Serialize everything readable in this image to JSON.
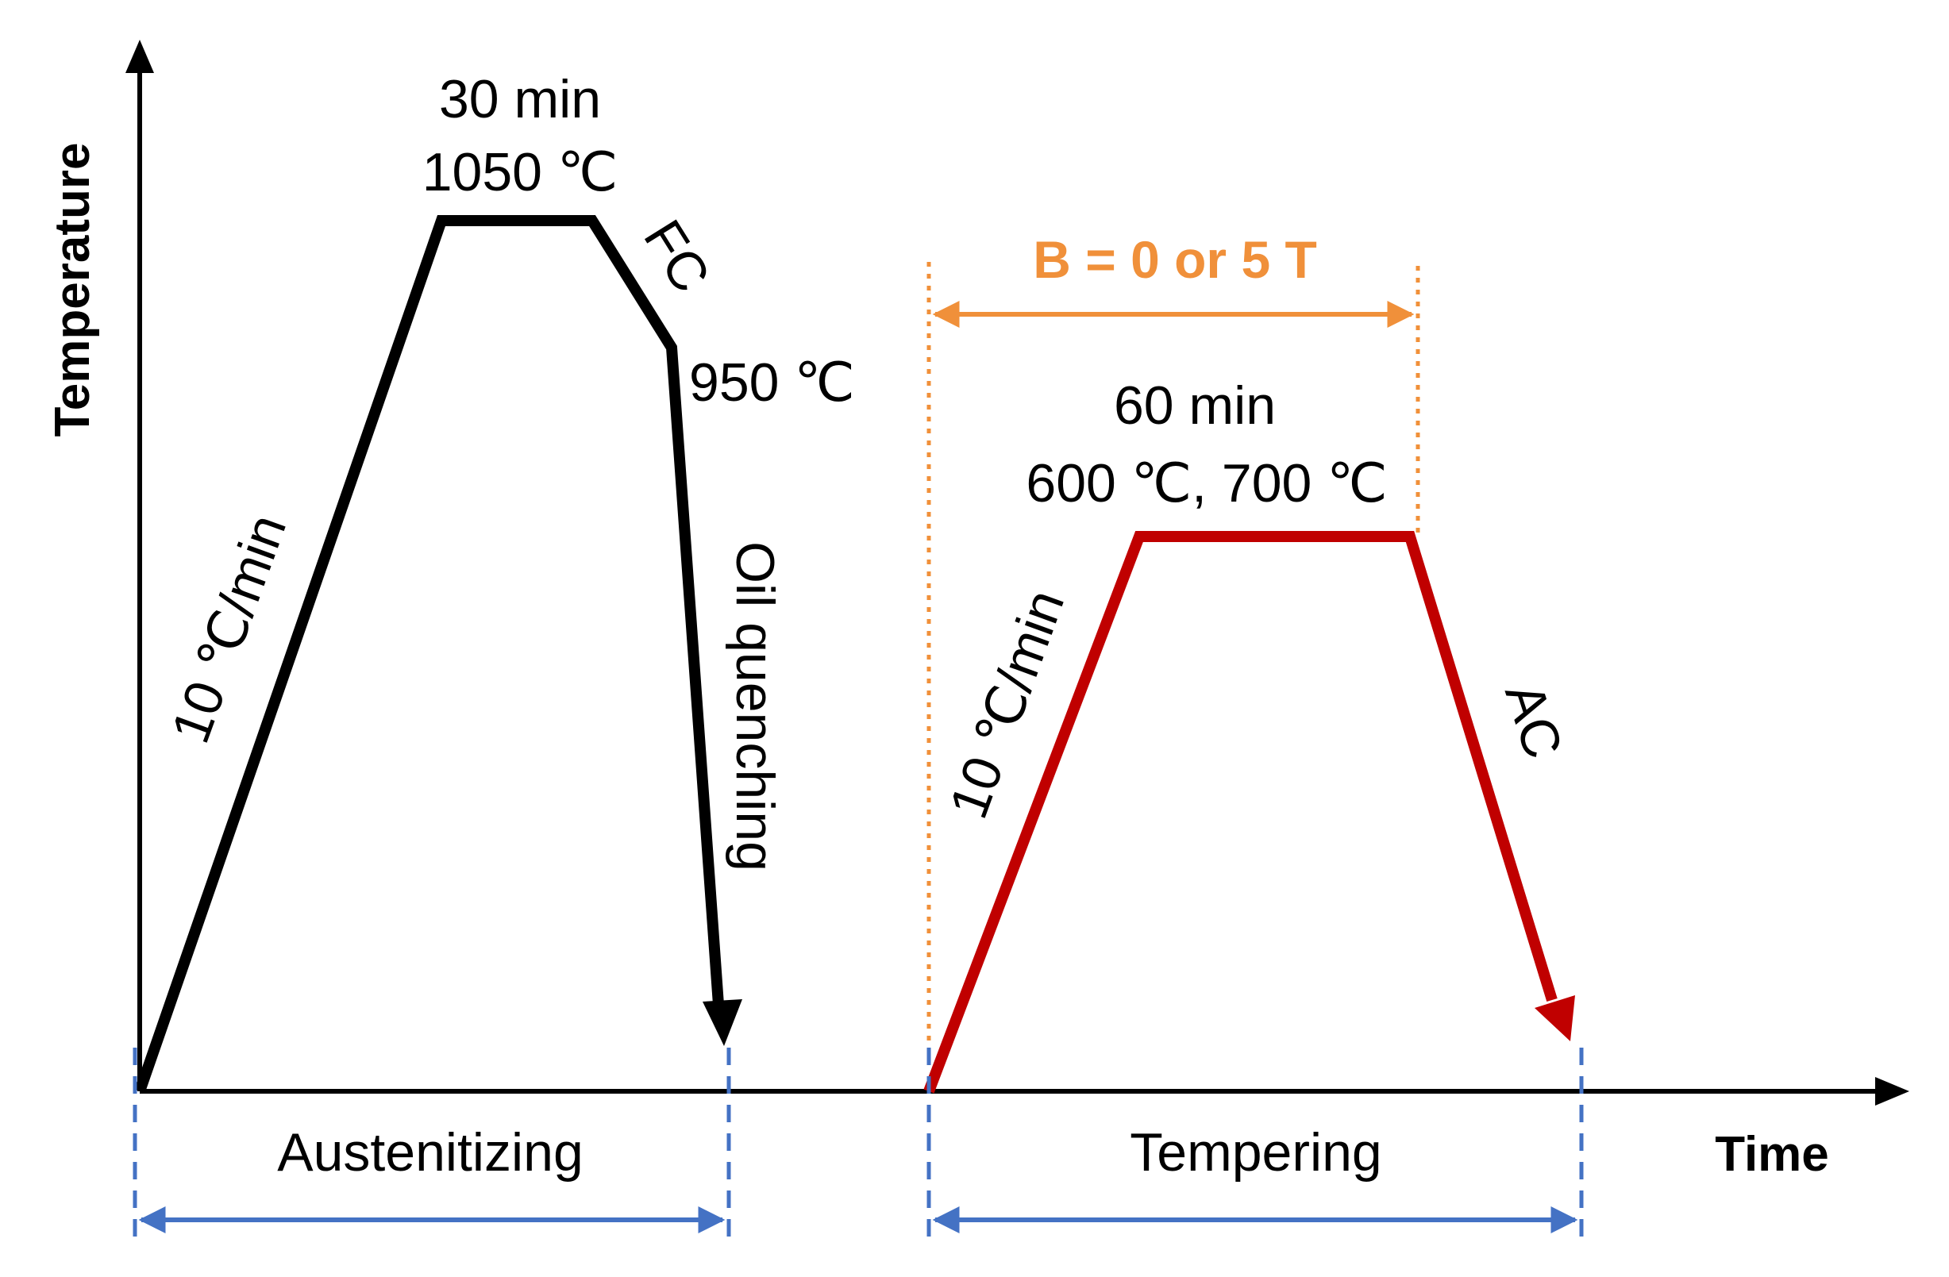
{
  "axes": {
    "y_label": "Temperature",
    "x_label": "Time"
  },
  "austenitizing": {
    "heating_rate": "10 ℃/min",
    "hold_time": "30 min",
    "hold_temp": "1050 ℃",
    "furnace_cool": "FC",
    "quench_start_temp": "950 ℃",
    "quench": "Oil quenching",
    "stage_label": "Austenitizing",
    "color": "#000000"
  },
  "tempering": {
    "field": "B = 0 or 5 T",
    "heating_rate": "10 ℃/min",
    "hold_time": "60 min",
    "hold_temps": "600 ℃, 700 ℃",
    "air_cool": "AC",
    "stage_label": "Tempering",
    "color": "#c00000"
  },
  "colors": {
    "field": "#f0903a",
    "stage_markers": "#4472c4"
  }
}
